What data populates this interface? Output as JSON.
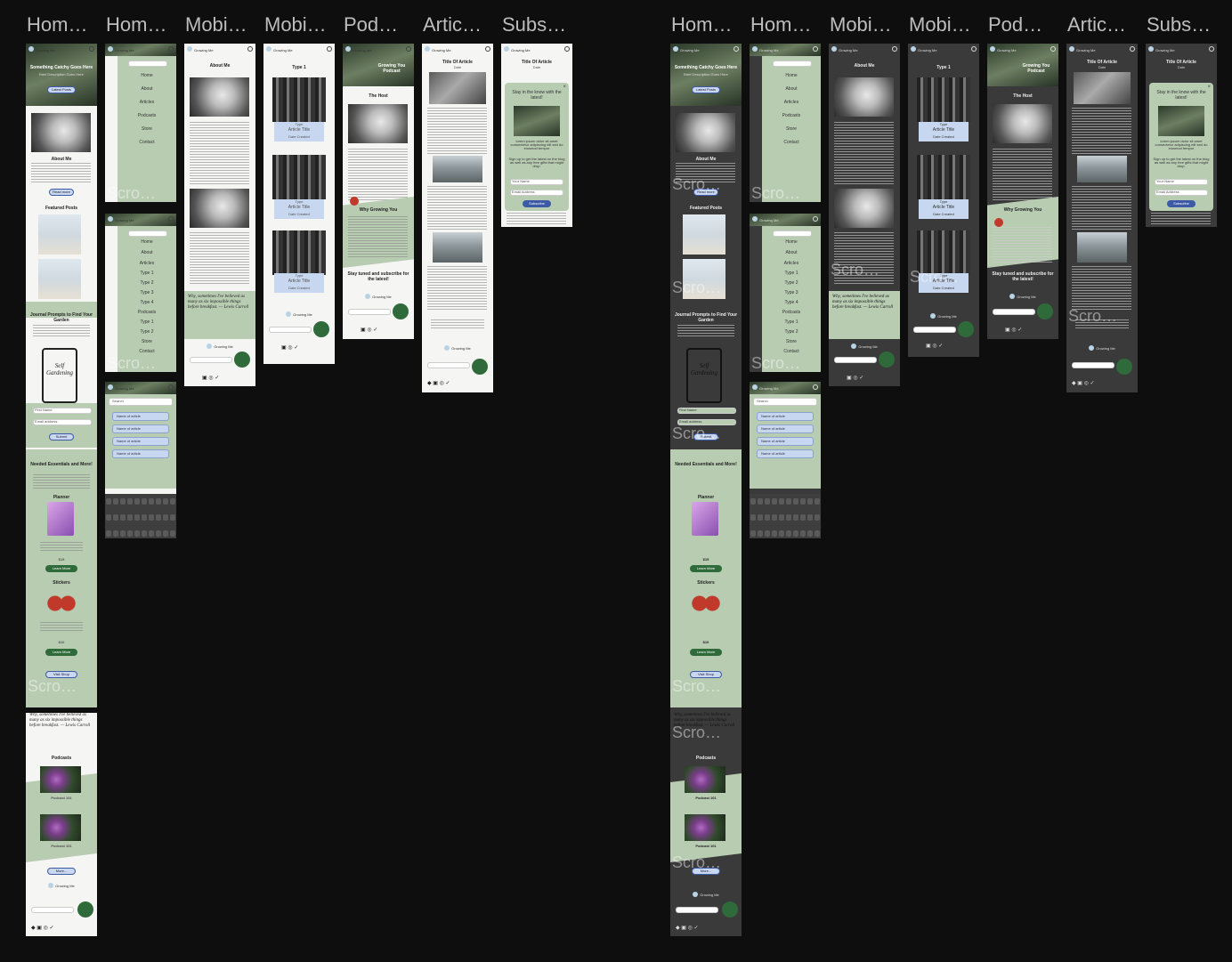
{
  "frame_labels": [
    "Hom…",
    "Hom…",
    "Mobi…",
    "Mobi…",
    "Pod…",
    "Artic…",
    "Subs…"
  ],
  "brand": "Growing Me",
  "home": {
    "hero_title": "Something Catchy Goes Here",
    "hero_sub": "Brief Description Goes Here",
    "hero_button": "Latest Posts",
    "about_title": "About Me",
    "about_button": "Read more",
    "featured_title": "Featured Posts",
    "journal_title": "Journal Prompts to Find Your Garden",
    "journal_book": "Self Gardening",
    "journal_button": "Submit",
    "field_first": "First Name",
    "field_email": "Email address",
    "essentials_title": "Needed Essentials and More!",
    "planner_title": "Planner",
    "planner_price": "$15",
    "learn_more": "Learn More",
    "stickers_title": "Stickers",
    "stickers_price": "$10",
    "visit_shop": "Visit Shop",
    "podcasts_title": "Podcasts",
    "podcast_item": "Podcast 101",
    "more_button": "More...",
    "scroll_tag": "Scro…"
  },
  "menu": {
    "items": [
      "Home",
      "About",
      "Articles",
      "Podcasts",
      "Store",
      "Contact"
    ],
    "items_expanded": [
      "Home",
      "About",
      "Articles",
      "Type 1",
      "Type 2",
      "Type 3",
      "Type 4",
      "Podcasts",
      "Type 1",
      "Type 2",
      "Store",
      "Contact"
    ],
    "search_placeholder": "Search",
    "results": [
      "Name of article",
      "Name of article",
      "Name of article",
      "Name of article"
    ]
  },
  "about_page": {
    "title": "About Me"
  },
  "type_page": {
    "title": "Type 1",
    "card_type": "Type",
    "card_title": "Article Title",
    "card_date": "Date Created"
  },
  "podcast_page": {
    "title": "Growing You Podcast",
    "host": "The Host",
    "why": "Why Growing You",
    "stay": "Stay tuned and subscribe for the latest!"
  },
  "article_page": {
    "title": "Title Of Article",
    "date": "Date",
    "subscribe": "Subscribe"
  },
  "subscribe_popup": {
    "title": "Stay in the know with the latest!",
    "body": "lorem ipsum dolor sit amet consectetur adipiscing elit sed do eiusmod tempor",
    "cta": "Sign up to get the latest on the blog as well as any free gifts that might drop.",
    "name": "Your Name",
    "email": "Email Address",
    "button": "Subscribe"
  },
  "quote": "Why, sometimes I've believed as many as six impossible things before breakfast. — Lewis Carroll",
  "footer": {
    "icons": [
      "instagram-icon",
      "facebook-icon",
      "twitter-icon"
    ],
    "subscribe": "Subscribe"
  }
}
